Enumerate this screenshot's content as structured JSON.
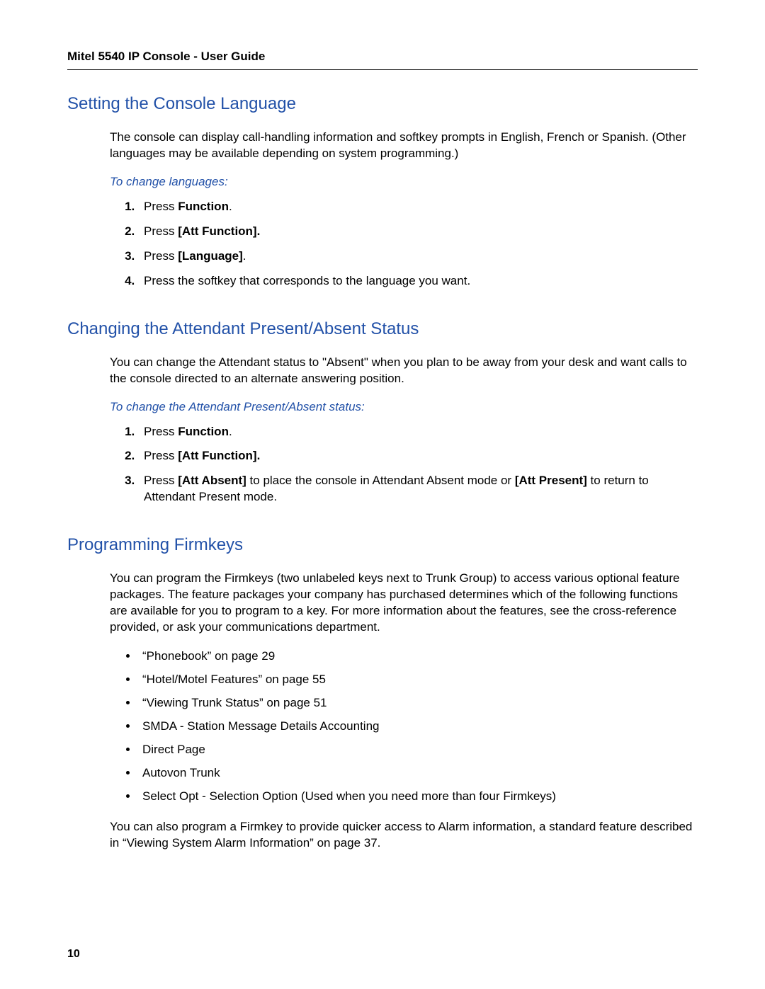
{
  "header": "Mitel 5540 IP Console - User Guide",
  "pageNumber": "10",
  "s1": {
    "title": "Setting the Console Language",
    "intro": "The console can display call-handling information and softkey prompts in English, French or Spanish. (Other languages may be available depending on system programming.)",
    "subhead": "To change languages:",
    "step1_a": "Press ",
    "step1_b": "Function",
    "step1_c": ".",
    "step2_a": "Press ",
    "step2_b": "[Att Function].",
    "step3_a": "Press ",
    "step3_b": "[Language]",
    "step3_c": ".",
    "step4": "Press the softkey that corresponds to the language you want."
  },
  "s2": {
    "title": "Changing the Attendant Present/Absent Status",
    "intro": "You can change the Attendant status to \"Absent\" when you plan to be away from your desk and want calls to the console directed to an alternate answering position.",
    "subhead": "To change the Attendant Present/Absent status:",
    "step1_a": "Press ",
    "step1_b": "Function",
    "step1_c": ".",
    "step2_a": "Press ",
    "step2_b": "[Att Function].",
    "step3_a": "Press ",
    "step3_b": "[Att Absent]",
    "step3_c": " to place the console in Attendant Absent mode or ",
    "step3_d": "[Att Present]",
    "step3_e": " to return to Attendant Present mode."
  },
  "s3": {
    "title": "Programming Firmkeys",
    "intro": "You can program the Firmkeys (two unlabeled keys next to Trunk Group) to access various optional feature packages. The feature packages your company has purchased determines which of the following functions are available for you to program to a key. For more information about the features, see the cross-reference provided, or ask your communications department.",
    "b1": "“Phonebook” on page 29",
    "b2": "“Hotel/Motel Features” on page 55",
    "b3": "“Viewing Trunk Status” on page 51",
    "b4": "SMDA - Station Message Details Accounting",
    "b5": "Direct Page",
    "b6": "Autovon Trunk",
    "b7": "Select Opt - Selection Option (Used when you need more than four Firmkeys)",
    "outro": "You can also program a Firmkey to provide quicker access to Alarm information, a standard feature described in “Viewing System Alarm Information” on page 37."
  }
}
